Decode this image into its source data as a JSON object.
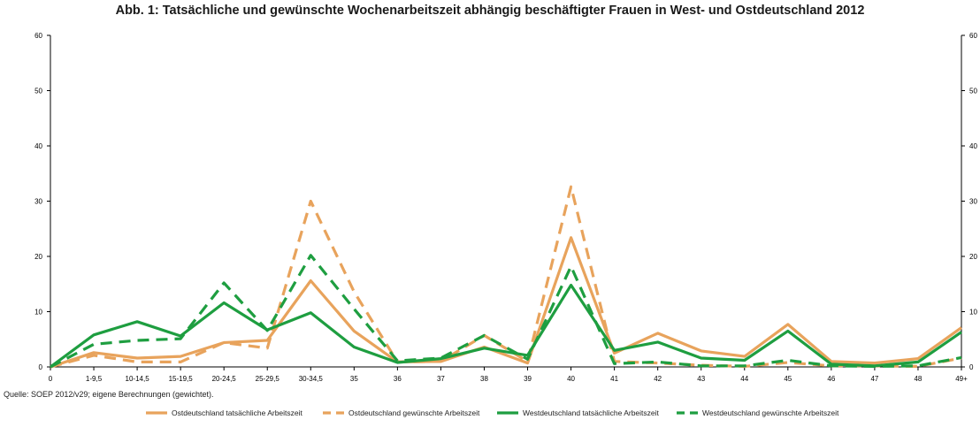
{
  "chart_data": {
    "type": "line",
    "title": "Abb. 1: Tatsächliche und gewünschte Wochenarbeitszeit abhängig beschäftigter Frauen in West- und Ostdeutschland 2012",
    "xlabel": "",
    "ylabel": "",
    "ylim": [
      0,
      60
    ],
    "yticks": [
      0,
      10,
      20,
      30,
      40,
      50,
      60
    ],
    "categories": [
      "0",
      "1-9,5",
      "10-14,5",
      "15-19,5",
      "20-24,5",
      "25-29,5",
      "30-34,5",
      "35",
      "36",
      "37",
      "38",
      "39",
      "40",
      "41",
      "42",
      "43",
      "44",
      "45",
      "46",
      "47",
      "48",
      "49+"
    ],
    "series": [
      {
        "name": "Ostdeutschland tatsächliche Arbeitszeit",
        "color": "#E8A35C",
        "dash": false,
        "values": [
          0,
          2.6,
          1.6,
          1.9,
          4.4,
          4.8,
          15.6,
          6.5,
          0.9,
          1.0,
          3.6,
          0.7,
          23.4,
          2.5,
          6.1,
          2.9,
          1.9,
          7.7,
          1.0,
          0.7,
          1.5,
          7.1
        ]
      },
      {
        "name": "Ostdeutschland gewünschte Arbeitszeit",
        "color": "#E8A35C",
        "dash": true,
        "values": [
          0,
          2.1,
          0.9,
          0.9,
          4.4,
          3.4,
          30.0,
          13.6,
          0.9,
          1.0,
          5.7,
          1.0,
          32.6,
          1.0,
          0.7,
          0.3,
          0.1,
          0.8,
          0.2,
          0.2,
          0.1,
          1.6
        ]
      },
      {
        "name": "Westdeutschland tatsächliche Arbeitszeit",
        "color": "#1E9E40",
        "dash": false,
        "values": [
          0,
          5.8,
          8.2,
          5.6,
          11.6,
          6.7,
          9.8,
          3.6,
          0.8,
          1.5,
          3.4,
          2.1,
          14.8,
          3.0,
          4.5,
          1.6,
          1.2,
          6.5,
          0.5,
          0.2,
          0.9,
          6.3
        ]
      },
      {
        "name": "Westdeutschland gewünschte Arbeitszeit",
        "color": "#1E9E40",
        "dash": true,
        "values": [
          0,
          4.1,
          4.8,
          5.1,
          15.2,
          6.6,
          20.2,
          10.5,
          1.1,
          1.6,
          5.7,
          1.4,
          18.2,
          0.6,
          0.9,
          0.2,
          0.2,
          1.2,
          0.2,
          0.1,
          0.2,
          1.7
        ]
      }
    ]
  },
  "source": "Quelle: SOEP 2012/v29; eigene Berechnungen (gewichtet)."
}
